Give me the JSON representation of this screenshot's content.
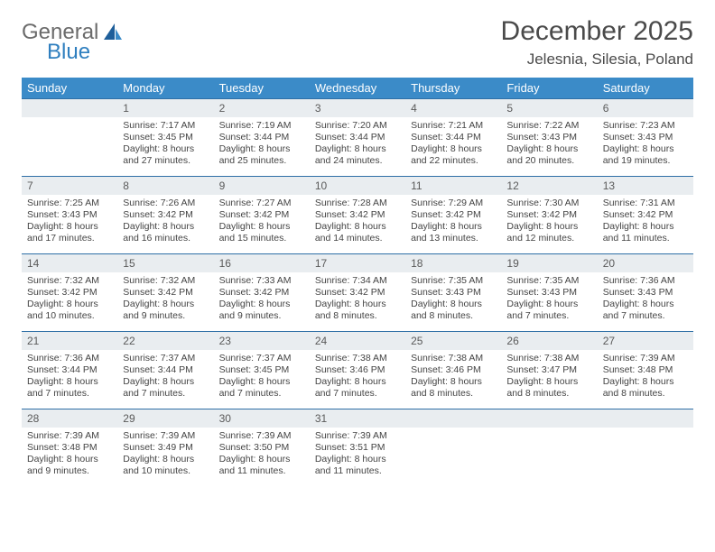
{
  "logo": {
    "line1": "General",
    "line2": "Blue"
  },
  "title": "December 2025",
  "location": "Jelesnia, Silesia, Poland",
  "colors": {
    "header_bg": "#3b8bc8",
    "header_text": "#ffffff",
    "daynum_bg": "#e9edf0",
    "cell_border": "#2e6fa6",
    "logo_general": "#6b6b6b",
    "logo_blue": "#2f7fbf",
    "text": "#444444"
  },
  "dows": [
    "Sunday",
    "Monday",
    "Tuesday",
    "Wednesday",
    "Thursday",
    "Friday",
    "Saturday"
  ],
  "weeks": [
    [
      null,
      {
        "n": "1",
        "sr": "Sunrise: 7:17 AM",
        "ss": "Sunset: 3:45 PM",
        "dl": "Daylight: 8 hours and 27 minutes."
      },
      {
        "n": "2",
        "sr": "Sunrise: 7:19 AM",
        "ss": "Sunset: 3:44 PM",
        "dl": "Daylight: 8 hours and 25 minutes."
      },
      {
        "n": "3",
        "sr": "Sunrise: 7:20 AM",
        "ss": "Sunset: 3:44 PM",
        "dl": "Daylight: 8 hours and 24 minutes."
      },
      {
        "n": "4",
        "sr": "Sunrise: 7:21 AM",
        "ss": "Sunset: 3:44 PM",
        "dl": "Daylight: 8 hours and 22 minutes."
      },
      {
        "n": "5",
        "sr": "Sunrise: 7:22 AM",
        "ss": "Sunset: 3:43 PM",
        "dl": "Daylight: 8 hours and 20 minutes."
      },
      {
        "n": "6",
        "sr": "Sunrise: 7:23 AM",
        "ss": "Sunset: 3:43 PM",
        "dl": "Daylight: 8 hours and 19 minutes."
      }
    ],
    [
      {
        "n": "7",
        "sr": "Sunrise: 7:25 AM",
        "ss": "Sunset: 3:43 PM",
        "dl": "Daylight: 8 hours and 17 minutes."
      },
      {
        "n": "8",
        "sr": "Sunrise: 7:26 AM",
        "ss": "Sunset: 3:42 PM",
        "dl": "Daylight: 8 hours and 16 minutes."
      },
      {
        "n": "9",
        "sr": "Sunrise: 7:27 AM",
        "ss": "Sunset: 3:42 PM",
        "dl": "Daylight: 8 hours and 15 minutes."
      },
      {
        "n": "10",
        "sr": "Sunrise: 7:28 AM",
        "ss": "Sunset: 3:42 PM",
        "dl": "Daylight: 8 hours and 14 minutes."
      },
      {
        "n": "11",
        "sr": "Sunrise: 7:29 AM",
        "ss": "Sunset: 3:42 PM",
        "dl": "Daylight: 8 hours and 13 minutes."
      },
      {
        "n": "12",
        "sr": "Sunrise: 7:30 AM",
        "ss": "Sunset: 3:42 PM",
        "dl": "Daylight: 8 hours and 12 minutes."
      },
      {
        "n": "13",
        "sr": "Sunrise: 7:31 AM",
        "ss": "Sunset: 3:42 PM",
        "dl": "Daylight: 8 hours and 11 minutes."
      }
    ],
    [
      {
        "n": "14",
        "sr": "Sunrise: 7:32 AM",
        "ss": "Sunset: 3:42 PM",
        "dl": "Daylight: 8 hours and 10 minutes."
      },
      {
        "n": "15",
        "sr": "Sunrise: 7:32 AM",
        "ss": "Sunset: 3:42 PM",
        "dl": "Daylight: 8 hours and 9 minutes."
      },
      {
        "n": "16",
        "sr": "Sunrise: 7:33 AM",
        "ss": "Sunset: 3:42 PM",
        "dl": "Daylight: 8 hours and 9 minutes."
      },
      {
        "n": "17",
        "sr": "Sunrise: 7:34 AM",
        "ss": "Sunset: 3:42 PM",
        "dl": "Daylight: 8 hours and 8 minutes."
      },
      {
        "n": "18",
        "sr": "Sunrise: 7:35 AM",
        "ss": "Sunset: 3:43 PM",
        "dl": "Daylight: 8 hours and 8 minutes."
      },
      {
        "n": "19",
        "sr": "Sunrise: 7:35 AM",
        "ss": "Sunset: 3:43 PM",
        "dl": "Daylight: 8 hours and 7 minutes."
      },
      {
        "n": "20",
        "sr": "Sunrise: 7:36 AM",
        "ss": "Sunset: 3:43 PM",
        "dl": "Daylight: 8 hours and 7 minutes."
      }
    ],
    [
      {
        "n": "21",
        "sr": "Sunrise: 7:36 AM",
        "ss": "Sunset: 3:44 PM",
        "dl": "Daylight: 8 hours and 7 minutes."
      },
      {
        "n": "22",
        "sr": "Sunrise: 7:37 AM",
        "ss": "Sunset: 3:44 PM",
        "dl": "Daylight: 8 hours and 7 minutes."
      },
      {
        "n": "23",
        "sr": "Sunrise: 7:37 AM",
        "ss": "Sunset: 3:45 PM",
        "dl": "Daylight: 8 hours and 7 minutes."
      },
      {
        "n": "24",
        "sr": "Sunrise: 7:38 AM",
        "ss": "Sunset: 3:46 PM",
        "dl": "Daylight: 8 hours and 7 minutes."
      },
      {
        "n": "25",
        "sr": "Sunrise: 7:38 AM",
        "ss": "Sunset: 3:46 PM",
        "dl": "Daylight: 8 hours and 8 minutes."
      },
      {
        "n": "26",
        "sr": "Sunrise: 7:38 AM",
        "ss": "Sunset: 3:47 PM",
        "dl": "Daylight: 8 hours and 8 minutes."
      },
      {
        "n": "27",
        "sr": "Sunrise: 7:39 AM",
        "ss": "Sunset: 3:48 PM",
        "dl": "Daylight: 8 hours and 8 minutes."
      }
    ],
    [
      {
        "n": "28",
        "sr": "Sunrise: 7:39 AM",
        "ss": "Sunset: 3:48 PM",
        "dl": "Daylight: 8 hours and 9 minutes."
      },
      {
        "n": "29",
        "sr": "Sunrise: 7:39 AM",
        "ss": "Sunset: 3:49 PM",
        "dl": "Daylight: 8 hours and 10 minutes."
      },
      {
        "n": "30",
        "sr": "Sunrise: 7:39 AM",
        "ss": "Sunset: 3:50 PM",
        "dl": "Daylight: 8 hours and 11 minutes."
      },
      {
        "n": "31",
        "sr": "Sunrise: 7:39 AM",
        "ss": "Sunset: 3:51 PM",
        "dl": "Daylight: 8 hours and 11 minutes."
      },
      null,
      null,
      null
    ]
  ]
}
